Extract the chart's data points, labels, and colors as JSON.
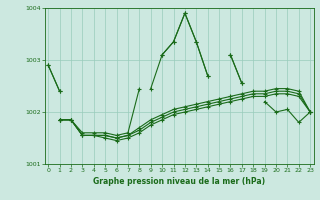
{
  "x": [
    0,
    1,
    2,
    3,
    4,
    5,
    6,
    7,
    8,
    9,
    10,
    11,
    12,
    13,
    14,
    15,
    16,
    17,
    18,
    19,
    20,
    21,
    22,
    23
  ],
  "series1": [
    1002.9,
    1002.4,
    null,
    null,
    null,
    null,
    null,
    null,
    null,
    null,
    1003.1,
    1003.35,
    1003.9,
    1003.35,
    1002.7,
    null,
    1003.1,
    1002.55,
    null,
    null,
    null,
    null,
    null,
    null
  ],
  "series2": [
    1002.9,
    1002.4,
    null,
    null,
    null,
    null,
    null,
    null,
    null,
    1002.45,
    1003.1,
    1003.35,
    1003.9,
    1003.35,
    1002.7,
    null,
    1003.1,
    1002.55,
    null,
    1002.2,
    1002.0,
    1002.05,
    1001.8,
    1002.0
  ],
  "series3": [
    null,
    1001.85,
    1001.85,
    1001.6,
    1001.6,
    1001.6,
    1001.55,
    1001.6,
    1002.45,
    null,
    null,
    null,
    null,
    null,
    null,
    null,
    null,
    null,
    null,
    null,
    null,
    null,
    null,
    null
  ],
  "series4": [
    null,
    1001.85,
    1001.85,
    1001.55,
    1001.55,
    1001.55,
    1001.5,
    1001.55,
    1001.7,
    1001.85,
    1001.95,
    1002.05,
    1002.1,
    1002.15,
    1002.2,
    1002.25,
    1002.3,
    1002.35,
    1002.4,
    1002.4,
    1002.45,
    1002.45,
    1002.4,
    1002.0
  ],
  "series5": [
    null,
    1001.85,
    1001.85,
    1001.55,
    1001.55,
    1001.55,
    1001.5,
    1001.55,
    1001.65,
    1001.8,
    1001.9,
    1002.0,
    1002.05,
    1002.1,
    1002.15,
    1002.2,
    1002.25,
    1002.3,
    1002.35,
    1002.35,
    1002.4,
    1002.4,
    1002.35,
    1002.0
  ],
  "series6": [
    null,
    1001.85,
    1001.85,
    1001.55,
    1001.55,
    1001.5,
    1001.45,
    1001.5,
    1001.6,
    1001.75,
    1001.85,
    1001.95,
    1002.0,
    1002.05,
    1002.1,
    1002.15,
    1002.2,
    1002.25,
    1002.3,
    1002.3,
    1002.35,
    1002.35,
    1002.3,
    1002.0
  ],
  "line_color": "#1a6b1a",
  "bg_color": "#cce8e0",
  "grid_color": "#99ccbb",
  "text_color": "#1a6b1a",
  "xlabel": "Graphe pression niveau de la mer (hPa)",
  "ylim": [
    1001.0,
    1004.0
  ],
  "yticks": [
    1001,
    1002,
    1003,
    1004
  ],
  "xticks": [
    0,
    1,
    2,
    3,
    4,
    5,
    6,
    7,
    8,
    9,
    10,
    11,
    12,
    13,
    14,
    15,
    16,
    17,
    18,
    19,
    20,
    21,
    22,
    23
  ]
}
